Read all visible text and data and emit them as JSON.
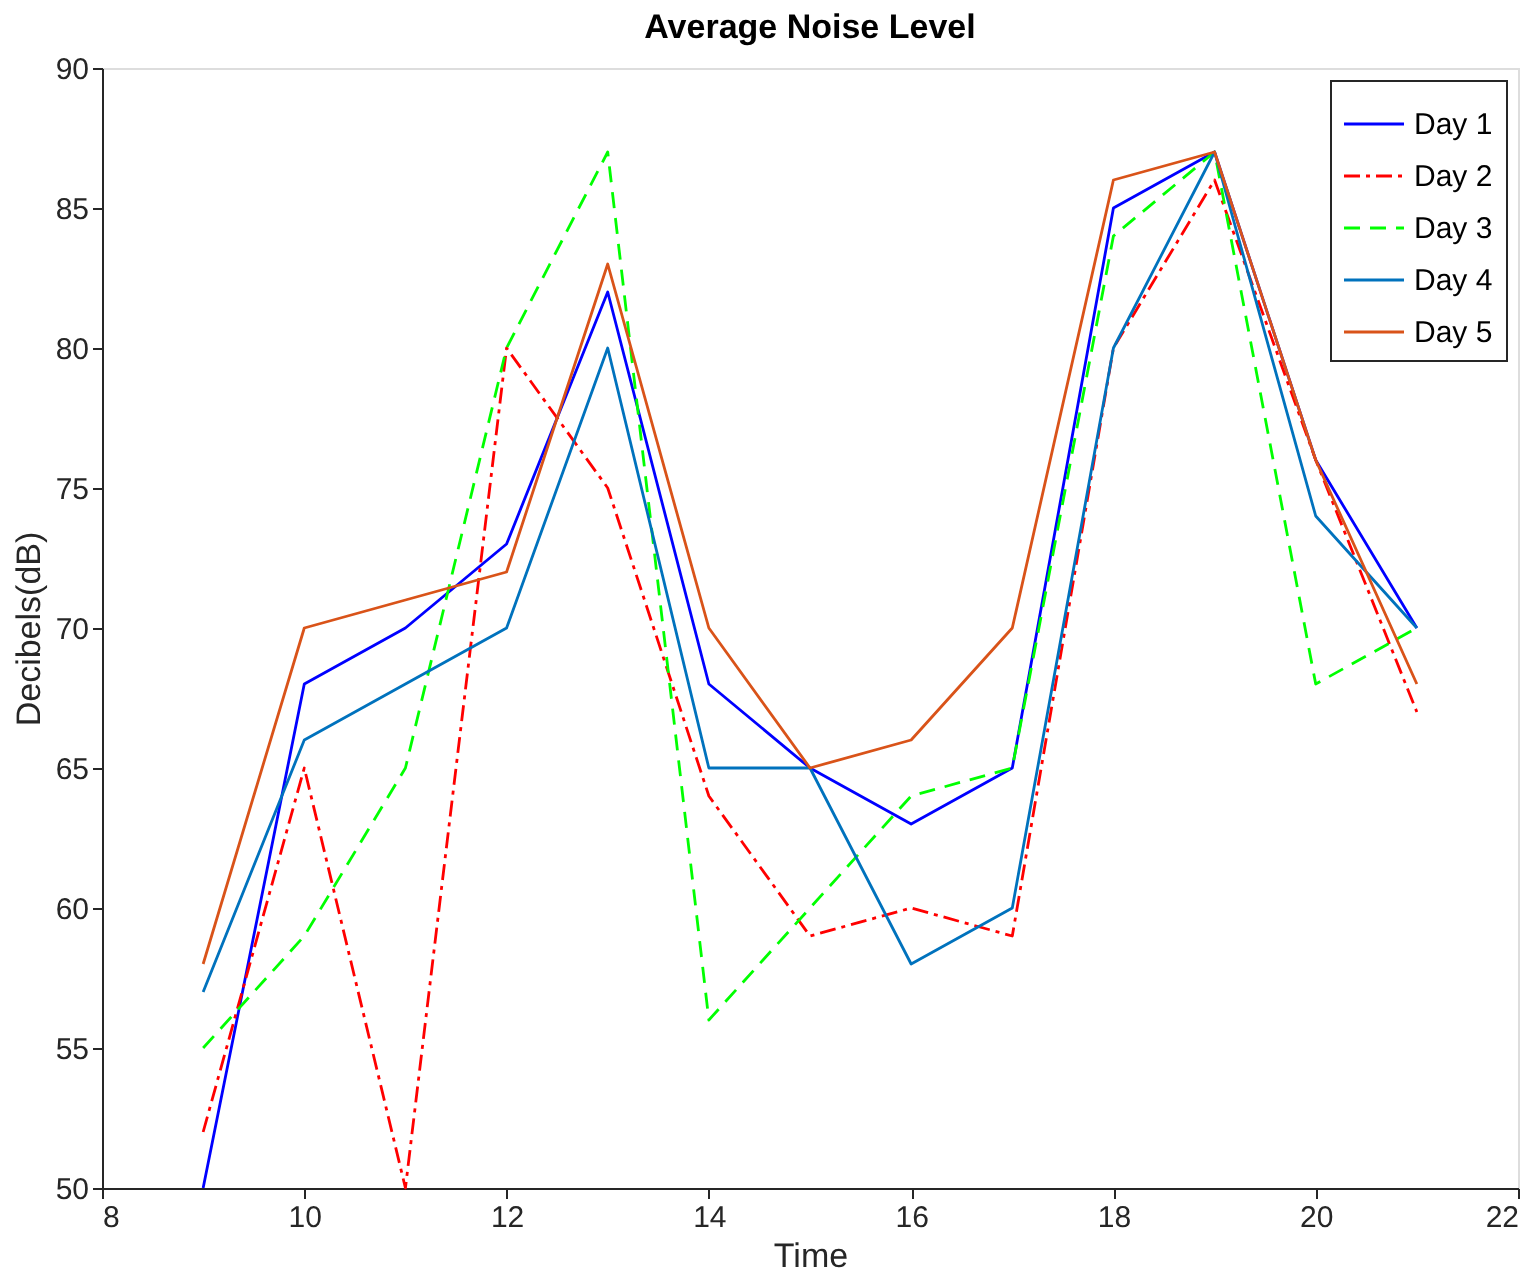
{
  "chart_data": {
    "type": "line",
    "title": "Average Noise Level",
    "xlabel": "Time",
    "ylabel": "Decibels(dB)",
    "x": [
      9,
      10,
      11,
      12,
      13,
      14,
      15,
      16,
      17,
      18,
      19,
      20,
      21
    ],
    "series": [
      {
        "name": "Day 1",
        "color": "#0000ff",
        "line_style": "solid",
        "values": [
          50,
          68,
          70,
          73,
          82,
          68,
          65,
          63,
          65,
          85,
          87,
          76,
          70
        ]
      },
      {
        "name": "Day 2",
        "color": "#ff0000",
        "line_style": "dashdot",
        "values": [
          52,
          65,
          50,
          80,
          75,
          64,
          59,
          60,
          59,
          80,
          86,
          76,
          67
        ]
      },
      {
        "name": "Day 3",
        "color": "#00ff00",
        "line_style": "dashed",
        "values": [
          55,
          59,
          65,
          80,
          87,
          56,
          60,
          64,
          65,
          84,
          87,
          68,
          70
        ]
      },
      {
        "name": "Day 4",
        "color": "#0072bd",
        "line_style": "solid",
        "values": [
          57,
          66,
          68,
          70,
          80,
          65,
          65,
          58,
          60,
          80,
          87,
          74,
          70
        ]
      },
      {
        "name": "Day 5",
        "color": "#d95319",
        "line_style": "solid",
        "values": [
          58,
          70,
          71,
          72,
          83,
          70,
          65,
          66,
          70,
          86,
          87,
          76,
          68
        ]
      }
    ],
    "xlim": [
      8,
      22
    ],
    "xticks": [
      8,
      10,
      12,
      14,
      16,
      18,
      20,
      22
    ],
    "ylim": [
      50,
      90
    ],
    "yticks": [
      50,
      55,
      60,
      65,
      70,
      75,
      80,
      85,
      90
    ],
    "grid": false,
    "legend": "top right",
    "marker": "none"
  }
}
